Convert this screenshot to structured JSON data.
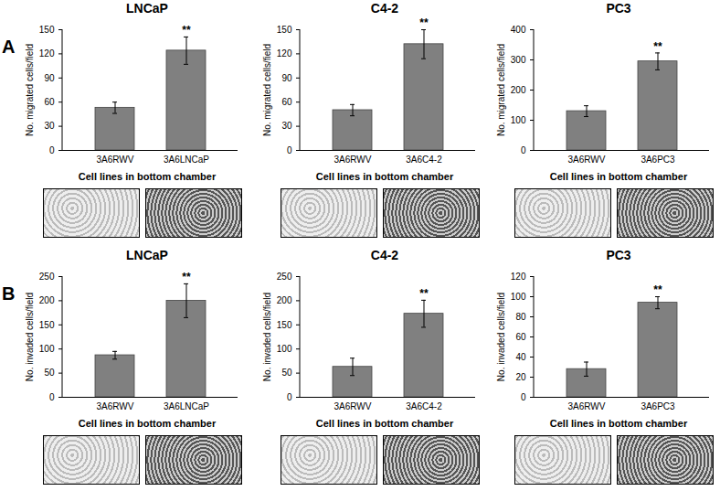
{
  "panels": [
    "A",
    "B"
  ],
  "chart_data": [
    {
      "panel": "A",
      "type": "bar",
      "title": "LNCaP",
      "ylabel": "No. migrated cells/field",
      "xlabel": "Cell lines in bottom chamber",
      "categories": [
        "3A6RWV",
        "3A6LNCaP"
      ],
      "values": [
        53,
        124
      ],
      "error": [
        7,
        17
      ],
      "significance": [
        null,
        "**"
      ],
      "color": "#808080",
      "ylim": [
        0,
        150
      ],
      "yticks": [
        0,
        30,
        60,
        90,
        120,
        150
      ],
      "grid": false
    },
    {
      "panel": "A",
      "type": "bar",
      "title": "C4-2",
      "ylabel": "No. migrated cells/field",
      "xlabel": "Cell lines in bottom chamber",
      "categories": [
        "3A6RWV",
        "3A6C4-2"
      ],
      "values": [
        50,
        132
      ],
      "error": [
        7,
        18
      ],
      "significance": [
        null,
        "**"
      ],
      "color": "#808080",
      "ylim": [
        0,
        150
      ],
      "yticks": [
        0,
        30,
        60,
        90,
        120,
        150
      ],
      "grid": false
    },
    {
      "panel": "A",
      "type": "bar",
      "title": "PC3",
      "ylabel": "No. migrated cells/field",
      "xlabel": "Cell lines in bottom chamber",
      "categories": [
        "3A6RWV",
        "3A6PC3"
      ],
      "values": [
        130,
        295
      ],
      "error": [
        18,
        28
      ],
      "significance": [
        null,
        "**"
      ],
      "color": "#808080",
      "ylim": [
        0,
        400
      ],
      "yticks": [
        0,
        100,
        200,
        300,
        400
      ],
      "grid": false
    },
    {
      "panel": "B",
      "type": "bar",
      "title": "LNCaP",
      "ylabel": "No. invaded cells/field",
      "xlabel": "Cell lines in bottom chamber",
      "categories": [
        "3A6RWV",
        "3A6LNCaP"
      ],
      "values": [
        87,
        200
      ],
      "error": [
        8,
        35
      ],
      "significance": [
        null,
        "**"
      ],
      "color": "#808080",
      "ylim": [
        0,
        250
      ],
      "yticks": [
        0,
        50,
        100,
        150,
        200,
        250
      ],
      "grid": false
    },
    {
      "panel": "B",
      "type": "bar",
      "title": "C4-2",
      "ylabel": "No. invaded cells/field",
      "xlabel": "Cell lines in bottom chamber",
      "categories": [
        "3A6RWV",
        "3A6C4-2"
      ],
      "values": [
        63,
        173
      ],
      "error": [
        18,
        28
      ],
      "significance": [
        null,
        "**"
      ],
      "color": "#808080",
      "ylim": [
        0,
        250
      ],
      "yticks": [
        0,
        50,
        100,
        150,
        200,
        250
      ],
      "grid": false
    },
    {
      "panel": "B",
      "type": "bar",
      "title": "PC3",
      "ylabel": "No. invaded cells/field",
      "xlabel": "Cell lines in bottom chamber",
      "categories": [
        "3A6RWV",
        "3A6PC3"
      ],
      "values": [
        28,
        94
      ],
      "error": [
        7,
        6
      ],
      "significance": [
        null,
        "**"
      ],
      "color": "#808080",
      "ylim": [
        0,
        120
      ],
      "yticks": [
        0,
        20,
        40,
        60,
        80,
        100,
        120
      ],
      "grid": false
    }
  ]
}
